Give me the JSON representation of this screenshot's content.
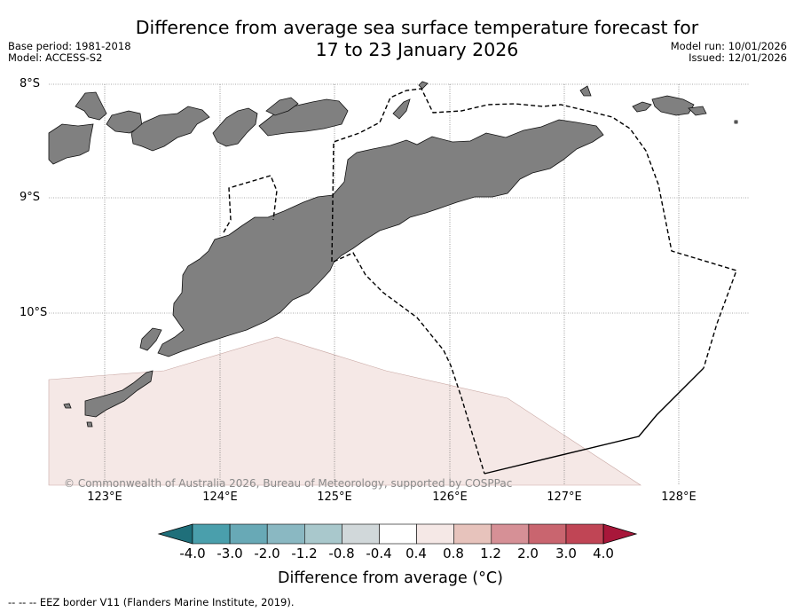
{
  "title_line1": "Difference from average sea surface temperature forecast for",
  "title_line2": "17 to 23 January 2026",
  "base_period": "Base period: 1981-2018",
  "model": "Model: ACCESS-S2",
  "model_run": "Model run: 10/01/2026",
  "issued": "Issued: 12/01/2026",
  "latitude_labels": [
    "8°S",
    "9°S",
    "10°S"
  ],
  "longitude_labels": [
    "123°E",
    "124°E",
    "125°E",
    "126°E",
    "127°E",
    "128°E"
  ],
  "copyright": "© Commonwealth of Australia 2026, Bureau of Meteorology, supported by COSPPac",
  "colorbar": {
    "ticks": [
      "-4.0",
      "-3.0",
      "-2.0",
      "-1.2",
      "-0.8",
      "-0.4",
      "0.4",
      "0.8",
      "1.2",
      "2.0",
      "3.0",
      "4.0"
    ],
    "colors": [
      "#1f6f7a",
      "#4a9fac",
      "#68a9b6",
      "#8ab8c2",
      "#a9c8cc",
      "#d1d8da",
      "#ffffff",
      "#f5e8e6",
      "#e7c3bc",
      "#d69096",
      "#c9656f",
      "#c04555",
      "#a8173a"
    ],
    "label": "Difference from average (°C)"
  },
  "map_colors": {
    "land": "#808080",
    "anomaly_fill": "#f5e8e6"
  },
  "footer": "--  --  -- EEZ border V11 (Flanders Marine Institute, 2019)."
}
